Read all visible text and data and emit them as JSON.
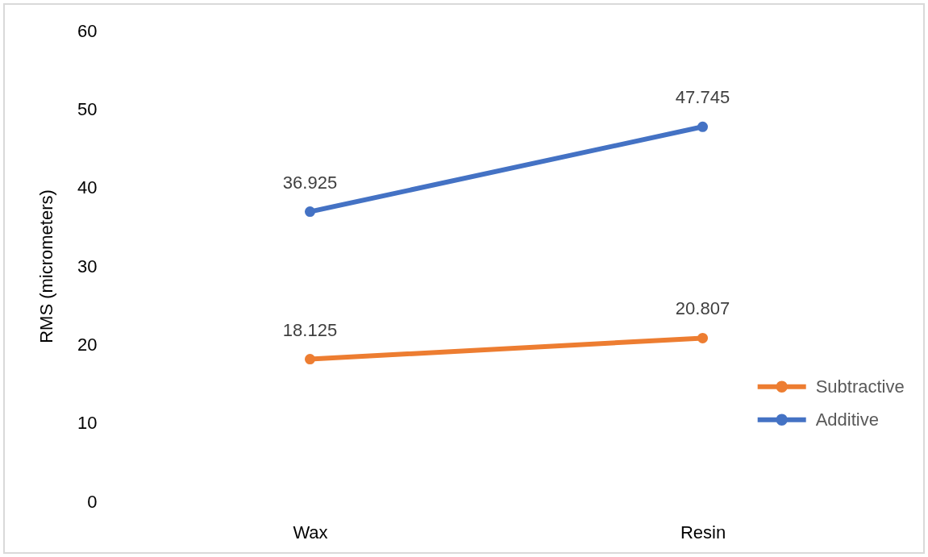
{
  "chart_data": {
    "type": "line",
    "categories": [
      "Wax",
      "Resin"
    ],
    "series": [
      {
        "name": "Subtractive",
        "color": "#ed7d31",
        "values": [
          18.125,
          20.807
        ]
      },
      {
        "name": "Additive",
        "color": "#4472c4",
        "values": [
          36.925,
          47.745
        ]
      }
    ],
    "ylabel": "RMS (micrometers)",
    "ylim": [
      0,
      60
    ],
    "yticks": [
      0,
      10,
      20,
      30,
      40,
      50,
      60
    ],
    "grid": false,
    "legend": "right",
    "marker": "circle",
    "line_style": "solid",
    "data_labels": true
  }
}
